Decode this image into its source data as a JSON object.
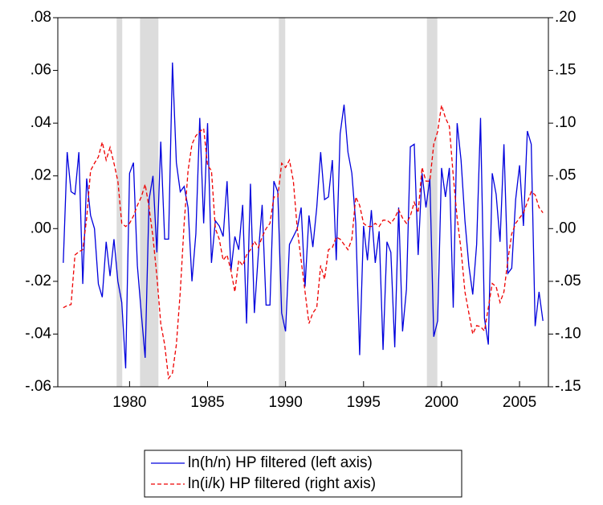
{
  "chart_data": {
    "type": "line",
    "x": [
      1975.75,
      1976,
      1976.25,
      1976.5,
      1976.75,
      1977,
      1977.25,
      1977.5,
      1977.75,
      1978,
      1978.25,
      1978.5,
      1978.75,
      1979,
      1979.25,
      1979.5,
      1979.75,
      1980,
      1980.25,
      1980.5,
      1980.75,
      1981,
      1981.25,
      1981.5,
      1981.75,
      1982,
      1982.25,
      1982.5,
      1982.75,
      1983,
      1983.25,
      1983.5,
      1983.75,
      1984,
      1984.25,
      1984.5,
      1984.75,
      1985,
      1985.25,
      1985.5,
      1985.75,
      1986,
      1986.25,
      1986.5,
      1986.75,
      1987,
      1987.25,
      1987.5,
      1987.75,
      1988,
      1988.25,
      1988.5,
      1988.75,
      1989,
      1989.25,
      1989.5,
      1989.75,
      1990,
      1990.25,
      1990.5,
      1990.75,
      1991,
      1991.25,
      1991.5,
      1991.75,
      1992,
      1992.25,
      1992.5,
      1992.75,
      1993,
      1993.25,
      1993.5,
      1993.75,
      1994,
      1994.25,
      1994.5,
      1994.75,
      1995,
      1995.25,
      1995.5,
      1995.75,
      1996,
      1996.25,
      1996.5,
      1996.75,
      1997,
      1997.25,
      1997.5,
      1997.75,
      1998,
      1998.25,
      1998.5,
      1998.75,
      1999,
      1999.25,
      1999.5,
      1999.75,
      2000,
      2000.25,
      2000.5,
      2000.75,
      2001,
      2001.25,
      2001.5,
      2001.75,
      2002,
      2002.25,
      2002.5,
      2002.75,
      2003,
      2003.25,
      2003.5,
      2003.75,
      2004,
      2004.25,
      2004.5,
      2004.75,
      2005,
      2005.25,
      2005.5,
      2005.75,
      2006,
      2006.25,
      2006.5
    ],
    "series": [
      {
        "name": "ln(h/n) HP filtered (left axis)",
        "color": "#0000dd",
        "dash": false,
        "values": [
          -0.013,
          0.029,
          0.014,
          0.013,
          0.029,
          -0.021,
          0.019,
          0.005,
          0.0,
          -0.021,
          -0.026,
          -0.005,
          -0.018,
          -0.004,
          -0.02,
          -0.028,
          -0.053,
          0.021,
          0.025,
          -0.014,
          -0.032,
          -0.049,
          0.011,
          0.02,
          -0.009,
          0.033,
          -0.004,
          -0.004,
          0.063,
          0.025,
          0.014,
          0.016,
          0.008,
          -0.02,
          -0.002,
          0.042,
          0.002,
          0.04,
          -0.013,
          0.003,
          0.001,
          -0.003,
          0.018,
          -0.016,
          -0.003,
          -0.008,
          0.009,
          -0.036,
          0.017,
          -0.032,
          -0.01,
          0.009,
          -0.029,
          -0.029,
          0.018,
          0.014,
          -0.032,
          -0.039,
          -0.006,
          -0.003,
          0.0,
          0.008,
          -0.022,
          0.005,
          -0.007,
          0.008,
          0.029,
          0.011,
          0.012,
          0.026,
          -0.012,
          0.036,
          0.047,
          0.029,
          0.021,
          0.002,
          -0.048,
          0.001,
          -0.012,
          0.007,
          -0.013,
          -0.001,
          -0.046,
          -0.005,
          -0.009,
          -0.045,
          0.008,
          -0.039,
          -0.023,
          0.031,
          0.032,
          -0.01,
          0.021,
          0.008,
          0.019,
          -0.041,
          -0.035,
          0.023,
          0.012,
          0.023,
          -0.03,
          0.04,
          0.026,
          0.003,
          -0.014,
          -0.025,
          -0.006,
          0.042,
          -0.034,
          -0.044,
          0.021,
          0.013,
          -0.005,
          0.032,
          -0.017,
          -0.015,
          0.011,
          0.024,
          0.001,
          0.037,
          0.032,
          -0.037,
          -0.024,
          -0.035
        ]
      },
      {
        "name": "ln(i/k) HP filtered (right axis)",
        "color": "#ee0000",
        "dash": true,
        "axis": "y2",
        "values": [
          -0.075,
          -0.073,
          -0.072,
          -0.025,
          -0.022,
          -0.02,
          0.01,
          0.055,
          0.062,
          0.068,
          0.082,
          0.065,
          0.077,
          0.062,
          0.045,
          0.005,
          0.002,
          0.005,
          0.012,
          0.022,
          0.03,
          0.042,
          0.02,
          -0.008,
          -0.045,
          -0.09,
          -0.11,
          -0.142,
          -0.137,
          -0.11,
          -0.06,
          0.005,
          0.055,
          0.08,
          0.088,
          0.092,
          0.095,
          0.06,
          0.055,
          0.0,
          -0.01,
          -0.03,
          -0.025,
          -0.04,
          -0.06,
          -0.03,
          -0.035,
          -0.025,
          -0.02,
          -0.012,
          -0.018,
          -0.008,
          0.0,
          0.005,
          0.03,
          0.03,
          0.062,
          0.058,
          0.065,
          0.045,
          0.0,
          -0.03,
          -0.06,
          -0.09,
          -0.08,
          -0.075,
          -0.035,
          -0.048,
          -0.02,
          -0.018,
          -0.008,
          -0.01,
          -0.015,
          -0.02,
          -0.01,
          0.03,
          0.022,
          0.005,
          0.002,
          0.002,
          0.005,
          0.002,
          0.008,
          0.008,
          0.005,
          0.01,
          0.018,
          0.01,
          0.005,
          0.012,
          0.025,
          0.015,
          0.058,
          0.045,
          0.045,
          0.08,
          0.092,
          0.117,
          0.105,
          0.097,
          0.05,
          0.01,
          -0.02,
          -0.06,
          -0.08,
          -0.1,
          -0.092,
          -0.093,
          -0.097,
          -0.075,
          -0.052,
          -0.055,
          -0.07,
          -0.06,
          -0.03,
          -0.005,
          0.005,
          0.01,
          0.015,
          0.025,
          0.035,
          0.032,
          0.02,
          0.015
        ]
      }
    ],
    "shaded": [
      [
        1979.17,
        1979.53
      ],
      [
        1980.67,
        1981.85
      ],
      [
        1989.57,
        1989.98
      ],
      [
        1999.06,
        1999.73
      ]
    ],
    "shade_color": "#dcdcdc",
    "xlim": [
      1975.4,
      2006.85
    ],
    "xticks": [
      1980,
      1985,
      1990,
      1995,
      2000,
      2005
    ],
    "ylim": [
      -0.06,
      0.08
    ],
    "yticks": [
      {
        "value": -0.06,
        "label": "-.06"
      },
      {
        "value": -0.04,
        "label": "-.04"
      },
      {
        "value": -0.02,
        "label": "-.02"
      },
      {
        "value": 0,
        "label": ".00"
      },
      {
        "value": 0.02,
        "label": ".02"
      },
      {
        "value": 0.04,
        "label": ".04"
      },
      {
        "value": 0.06,
        "label": ".06"
      },
      {
        "value": 0.08,
        "label": ".08"
      }
    ],
    "y2lim": [
      -0.15,
      0.2
    ],
    "y2ticks": [
      {
        "value": -0.15,
        "label": "-.15"
      },
      {
        "value": -0.1,
        "label": "-.10"
      },
      {
        "value": -0.05,
        "label": "-.05"
      },
      {
        "value": 0,
        "label": ".00"
      },
      {
        "value": 0.05,
        "label": ".05"
      },
      {
        "value": 0.1,
        "label": ".10"
      },
      {
        "value": 0.15,
        "label": ".15"
      },
      {
        "value": 0.2,
        "label": ".20"
      }
    ],
    "legend": "bottom"
  }
}
